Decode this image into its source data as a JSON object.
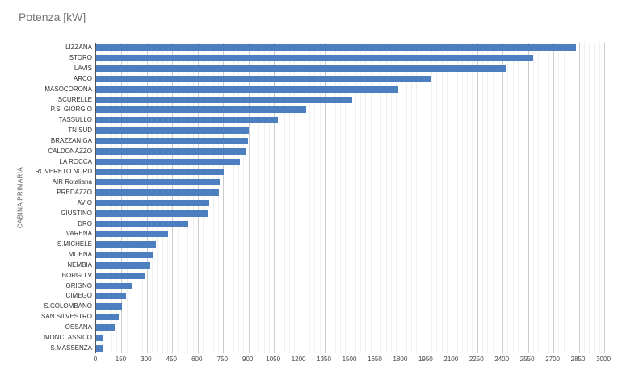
{
  "chart_data": {
    "type": "bar",
    "orientation": "horizontal",
    "title": "Potenza [kW]",
    "xlabel": "",
    "ylabel": "CABINA PRIMARIA",
    "xlim": [
      0,
      3000
    ],
    "x_ticks": [
      0,
      150,
      300,
      450,
      600,
      750,
      900,
      1050,
      1200,
      1350,
      1500,
      1650,
      1800,
      1950,
      2100,
      2250,
      2400,
      2550,
      2700,
      2850,
      3000
    ],
    "minor_tick_step": 30,
    "grid": true,
    "legend": "none",
    "bar_color": "#4d7ebf",
    "major_grid_color": "#cccccc",
    "minor_grid_color": "#f0f0f0",
    "axis_line_color": "#555555",
    "categories": [
      "LIZZANA",
      "STORO",
      "LAVIS",
      "ARCO",
      "MASOCORONA",
      "SCURELLE",
      "P.S. GIORGIO",
      "TASSULLO",
      "TN SUD",
      "BRAZZANIGA",
      "CALDONAZZO",
      "LA ROCCA",
      "ROVERETO NORD",
      "AIR Rotaliana",
      "PREDAZZO",
      "AVIO",
      "GIUSTINO",
      "DRO",
      "VARENA",
      "S.MICHELE",
      "MOENA",
      "NEMBIA",
      "BORGO V",
      "GRIGNO",
      "CIMEGO",
      "S.COLOMBANO",
      "SAN SILVESTRO",
      "OSSANA",
      "MONCLASSICO",
      "S.MASSENZA"
    ],
    "values": [
      2835,
      2580,
      2420,
      1980,
      1785,
      1510,
      1240,
      1075,
      900,
      895,
      885,
      850,
      755,
      730,
      725,
      668,
      658,
      545,
      425,
      355,
      338,
      320,
      288,
      212,
      177,
      154,
      134,
      110,
      42,
      42
    ]
  }
}
